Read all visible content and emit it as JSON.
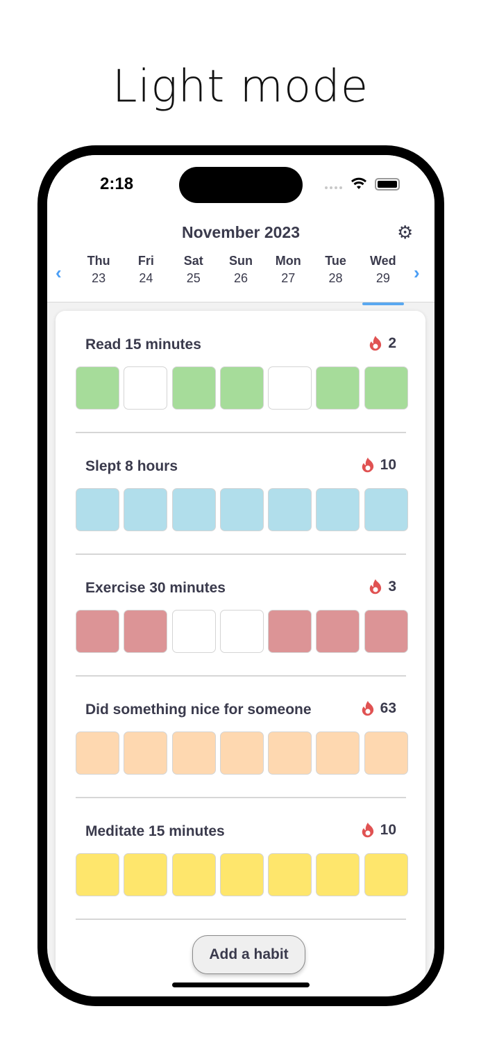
{
  "headline": "Light mode",
  "status": {
    "time": "2:18"
  },
  "header": {
    "month": "November 2023",
    "selected_index": 6,
    "days": [
      {
        "name": "Thu",
        "num": "23"
      },
      {
        "name": "Fri",
        "num": "24"
      },
      {
        "name": "Sat",
        "num": "25"
      },
      {
        "name": "Sun",
        "num": "26"
      },
      {
        "name": "Mon",
        "num": "27"
      },
      {
        "name": "Tue",
        "num": "28"
      },
      {
        "name": "Wed",
        "num": "29"
      }
    ]
  },
  "habits": [
    {
      "title": "Read 15 minutes",
      "streak": "2",
      "color": "#a6dc9a",
      "done": [
        true,
        false,
        true,
        true,
        false,
        true,
        true
      ]
    },
    {
      "title": "Slept 8 hours",
      "streak": "10",
      "color": "#b1deeb",
      "done": [
        true,
        true,
        true,
        true,
        true,
        true,
        true
      ]
    },
    {
      "title": "Exercise 30 minutes",
      "streak": "3",
      "color": "#dc9496",
      "done": [
        true,
        true,
        false,
        false,
        true,
        true,
        true
      ]
    },
    {
      "title": "Did something nice for someone",
      "streak": "63",
      "color": "#fed8b0",
      "done": [
        true,
        true,
        true,
        true,
        true,
        true,
        true
      ]
    },
    {
      "title": "Meditate 15 minutes",
      "streak": "10",
      "color": "#fee66c",
      "done": [
        true,
        true,
        true,
        true,
        true,
        true,
        true
      ]
    }
  ],
  "add_button": "Add a habit",
  "colors": {
    "accent": "#4a9ef5",
    "flame": "#e05252"
  }
}
